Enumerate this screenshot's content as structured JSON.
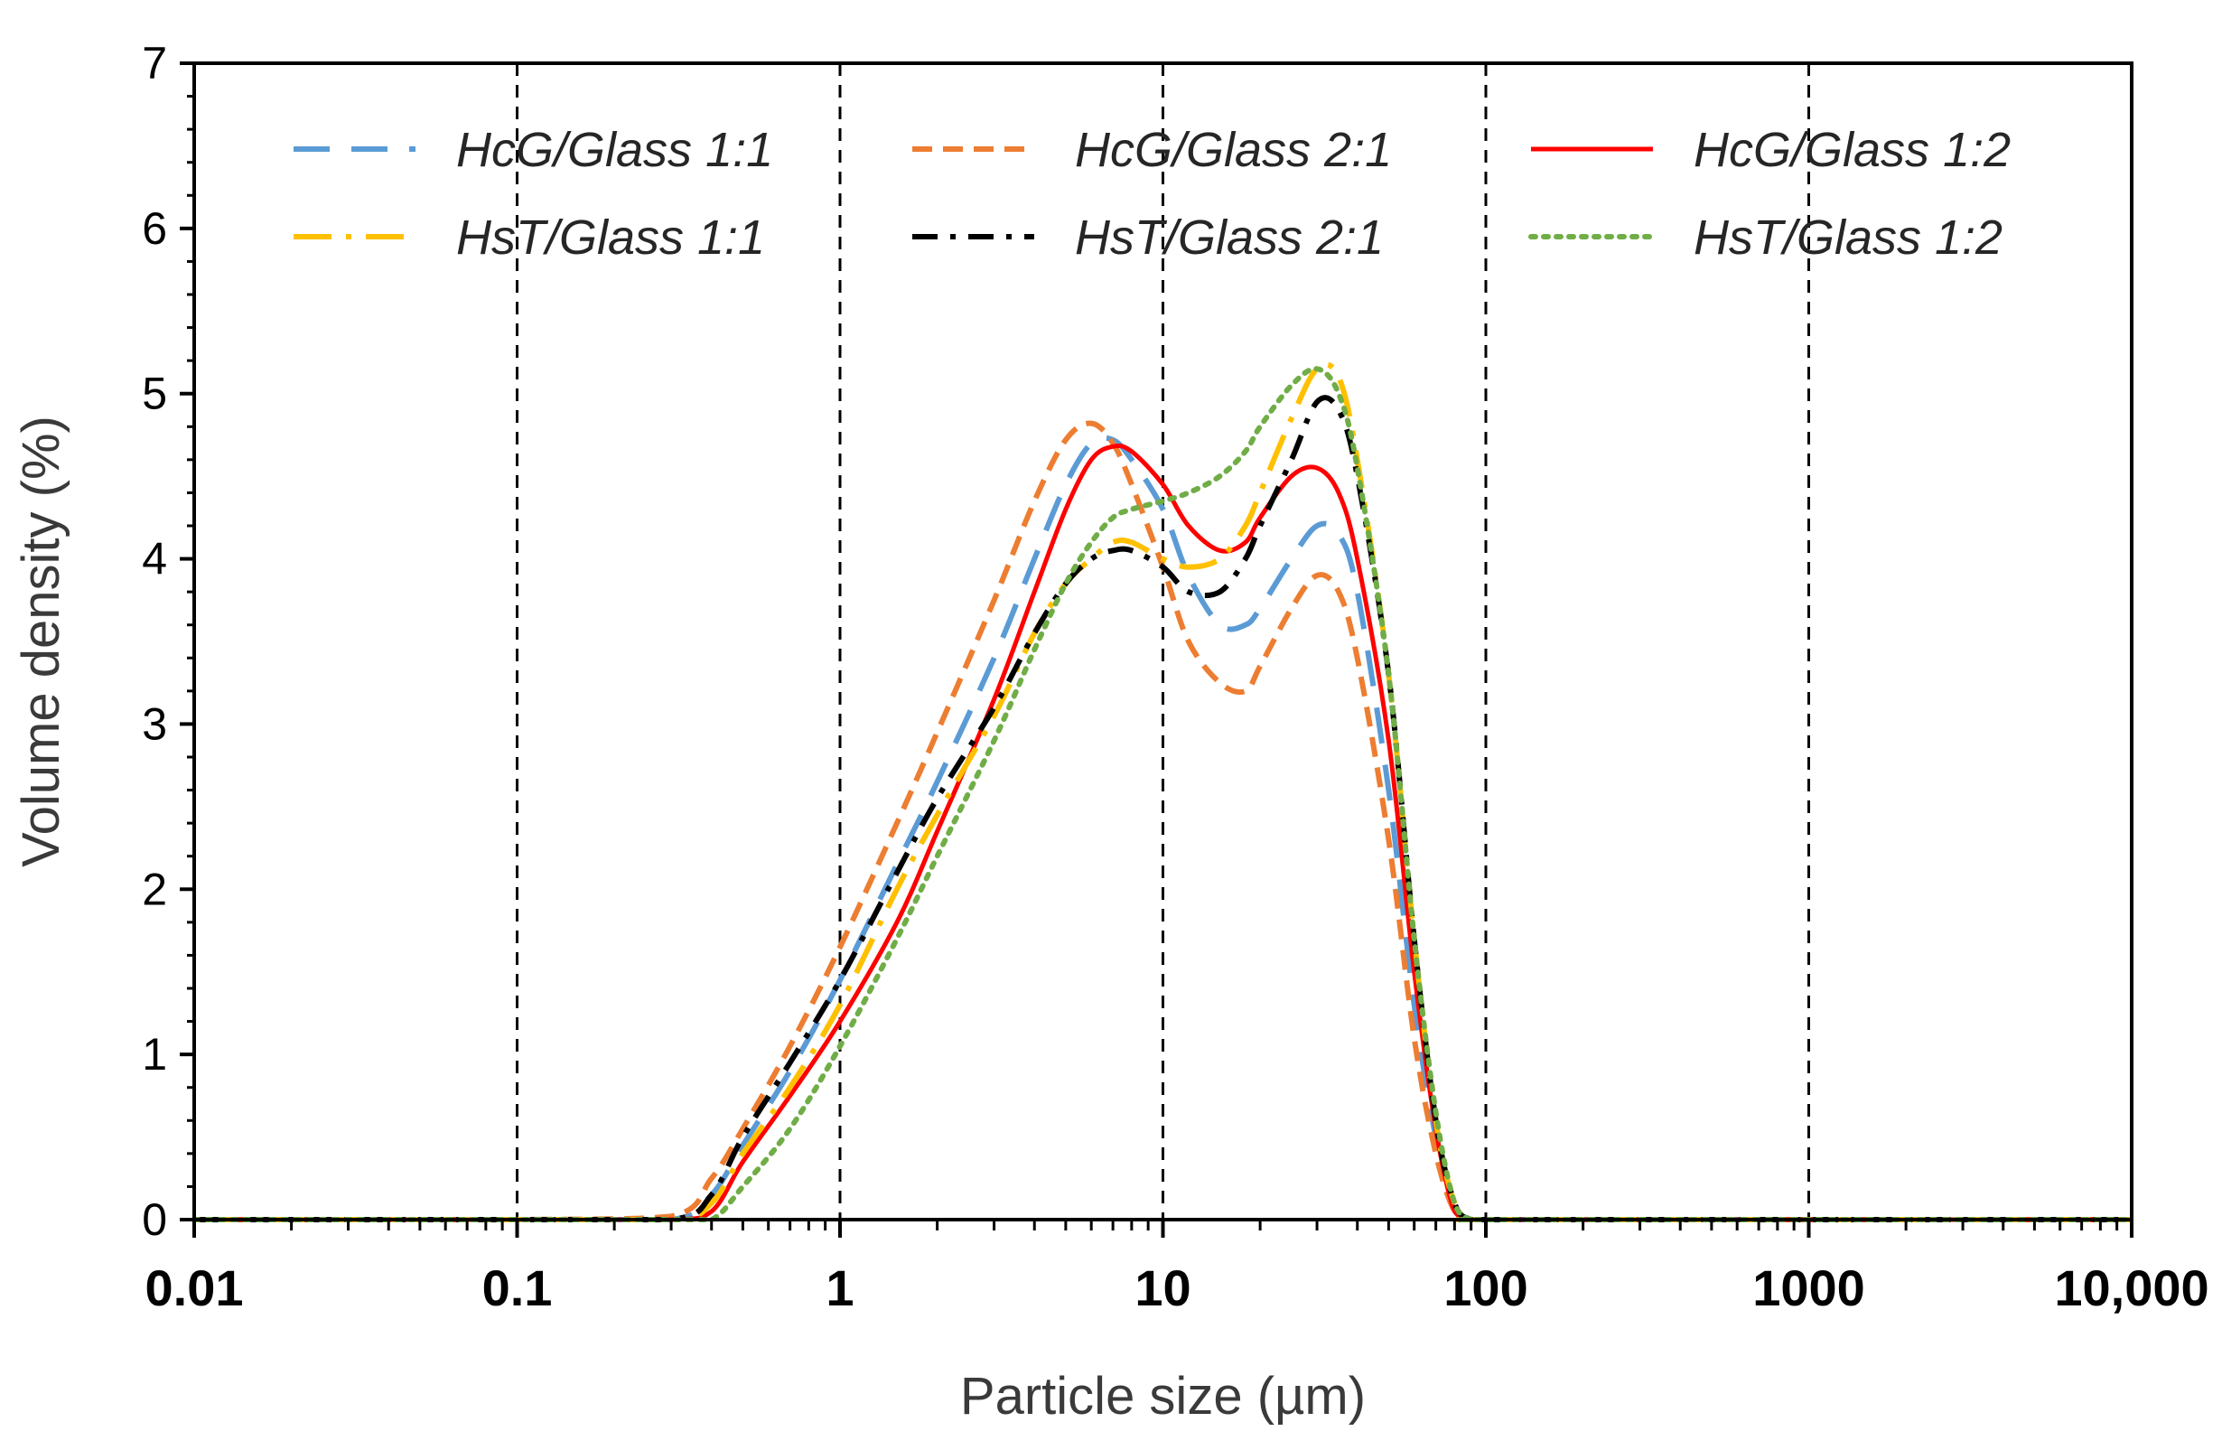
{
  "chart_data": {
    "type": "line",
    "title": "",
    "xlabel": "Particle size (µm)",
    "ylabel": "Volume density (%)",
    "xscale": "log",
    "xlim": [
      0.01,
      10000
    ],
    "ylim": [
      0,
      7
    ],
    "x_tick_values": [
      0.01,
      0.1,
      1,
      10,
      100,
      1000,
      10000
    ],
    "x_tick_labels": [
      "0.01",
      "0.1",
      "1",
      "10",
      "100",
      "1000",
      "10,000"
    ],
    "y_ticks": [
      0,
      1,
      2,
      3,
      4,
      5,
      6,
      7
    ],
    "grid": "vertical dashed lines at decades",
    "legend_position": "top, 3 columns x 2 rows",
    "series": [
      {
        "name": "HcG/Glass 1:1",
        "color": "#5b9bd5",
        "dash": "long-dash",
        "x": [
          0.01,
          0.1,
          0.3,
          0.4,
          0.5,
          0.7,
          1,
          1.5,
          2,
          3,
          4,
          5,
          6,
          7,
          8,
          10,
          12,
          15,
          18,
          20,
          25,
          30,
          35,
          40,
          50,
          60,
          70,
          80,
          90,
          100,
          1000,
          10000
        ],
        "y": [
          0,
          0,
          0,
          0.15,
          0.45,
          0.9,
          1.45,
          2.15,
          2.65,
          3.4,
          4.0,
          4.45,
          4.7,
          4.72,
          4.6,
          4.3,
          3.9,
          3.6,
          3.6,
          3.7,
          4.0,
          4.2,
          4.15,
          3.8,
          2.6,
          1.3,
          0.5,
          0.1,
          0,
          0,
          0,
          0
        ]
      },
      {
        "name": "HcG/Glass 2:1",
        "color": "#ed7d31",
        "dash": "short-dash",
        "x": [
          0.01,
          0.1,
          0.3,
          0.4,
          0.5,
          0.7,
          1,
          1.5,
          2,
          3,
          4,
          5,
          6,
          7,
          8,
          10,
          12,
          15,
          18,
          20,
          25,
          30,
          35,
          40,
          50,
          60,
          70,
          80,
          90,
          100,
          1000,
          10000
        ],
        "y": [
          0,
          0,
          0.02,
          0.25,
          0.55,
          1.05,
          1.65,
          2.4,
          2.95,
          3.75,
          4.35,
          4.72,
          4.82,
          4.7,
          4.45,
          3.95,
          3.5,
          3.25,
          3.2,
          3.35,
          3.7,
          3.9,
          3.8,
          3.4,
          2.3,
          1.1,
          0.4,
          0.05,
          0,
          0,
          0,
          0
        ]
      },
      {
        "name": "HcG/Glass 1:2",
        "color": "#ff0000",
        "dash": "solid",
        "x": [
          0.01,
          0.1,
          0.3,
          0.4,
          0.5,
          0.7,
          1,
          1.5,
          2,
          3,
          4,
          5,
          6,
          7,
          8,
          10,
          12,
          15,
          18,
          20,
          25,
          30,
          35,
          40,
          50,
          60,
          70,
          80,
          90,
          100,
          1000,
          10000
        ],
        "y": [
          0,
          0,
          0,
          0.05,
          0.35,
          0.75,
          1.2,
          1.8,
          2.35,
          3.15,
          3.8,
          4.3,
          4.6,
          4.68,
          4.65,
          4.45,
          4.2,
          4.05,
          4.1,
          4.25,
          4.5,
          4.55,
          4.4,
          4.0,
          2.9,
          1.5,
          0.55,
          0.05,
          0,
          0,
          0,
          0
        ]
      },
      {
        "name": "HsT/Glass 1:1",
        "color": "#ffc000",
        "dash": "long-dash-dot",
        "x": [
          0.01,
          0.1,
          0.3,
          0.4,
          0.5,
          0.7,
          1,
          1.5,
          2,
          3,
          4,
          5,
          6,
          7,
          8,
          10,
          12,
          15,
          18,
          20,
          25,
          30,
          35,
          40,
          50,
          60,
          70,
          80,
          90,
          100,
          1000,
          10000
        ],
        "y": [
          0,
          0,
          0,
          0.1,
          0.4,
          0.8,
          1.3,
          2.0,
          2.45,
          3.05,
          3.55,
          3.85,
          4.0,
          4.1,
          4.1,
          4.0,
          3.95,
          4.0,
          4.2,
          4.4,
          4.85,
          5.15,
          5.1,
          4.6,
          3.3,
          1.7,
          0.6,
          0.1,
          0,
          0,
          0,
          0
        ]
      },
      {
        "name": "HsT/Glass 2:1",
        "color": "#000000",
        "dash": "dash-dot",
        "x": [
          0.01,
          0.1,
          0.3,
          0.4,
          0.5,
          0.7,
          1,
          1.5,
          2,
          3,
          4,
          5,
          6,
          7,
          8,
          10,
          12,
          15,
          18,
          20,
          25,
          30,
          35,
          40,
          50,
          60,
          70,
          80,
          90,
          100,
          1000,
          10000
        ],
        "y": [
          0,
          0,
          0,
          0.15,
          0.5,
          0.95,
          1.45,
          2.1,
          2.55,
          3.1,
          3.55,
          3.85,
          4.0,
          4.05,
          4.05,
          3.95,
          3.8,
          3.8,
          4.0,
          4.2,
          4.6,
          4.95,
          4.9,
          4.5,
          3.3,
          1.7,
          0.6,
          0.1,
          0,
          0,
          0,
          0
        ]
      },
      {
        "name": "HsT/Glass 1:2",
        "color": "#70ad47",
        "dash": "dotted",
        "x": [
          0.01,
          0.1,
          0.3,
          0.4,
          0.5,
          0.7,
          1,
          1.5,
          2,
          3,
          4,
          5,
          6,
          7,
          8,
          10,
          12,
          15,
          18,
          20,
          25,
          30,
          35,
          40,
          50,
          60,
          70,
          80,
          90,
          100,
          1000,
          10000
        ],
        "y": [
          0,
          0,
          0,
          0,
          0.2,
          0.55,
          1.05,
          1.7,
          2.2,
          2.9,
          3.45,
          3.85,
          4.1,
          4.25,
          4.3,
          4.35,
          4.4,
          4.5,
          4.65,
          4.8,
          5.05,
          5.15,
          5.0,
          4.55,
          3.3,
          1.7,
          0.65,
          0.1,
          0,
          0,
          0,
          0
        ]
      }
    ]
  }
}
